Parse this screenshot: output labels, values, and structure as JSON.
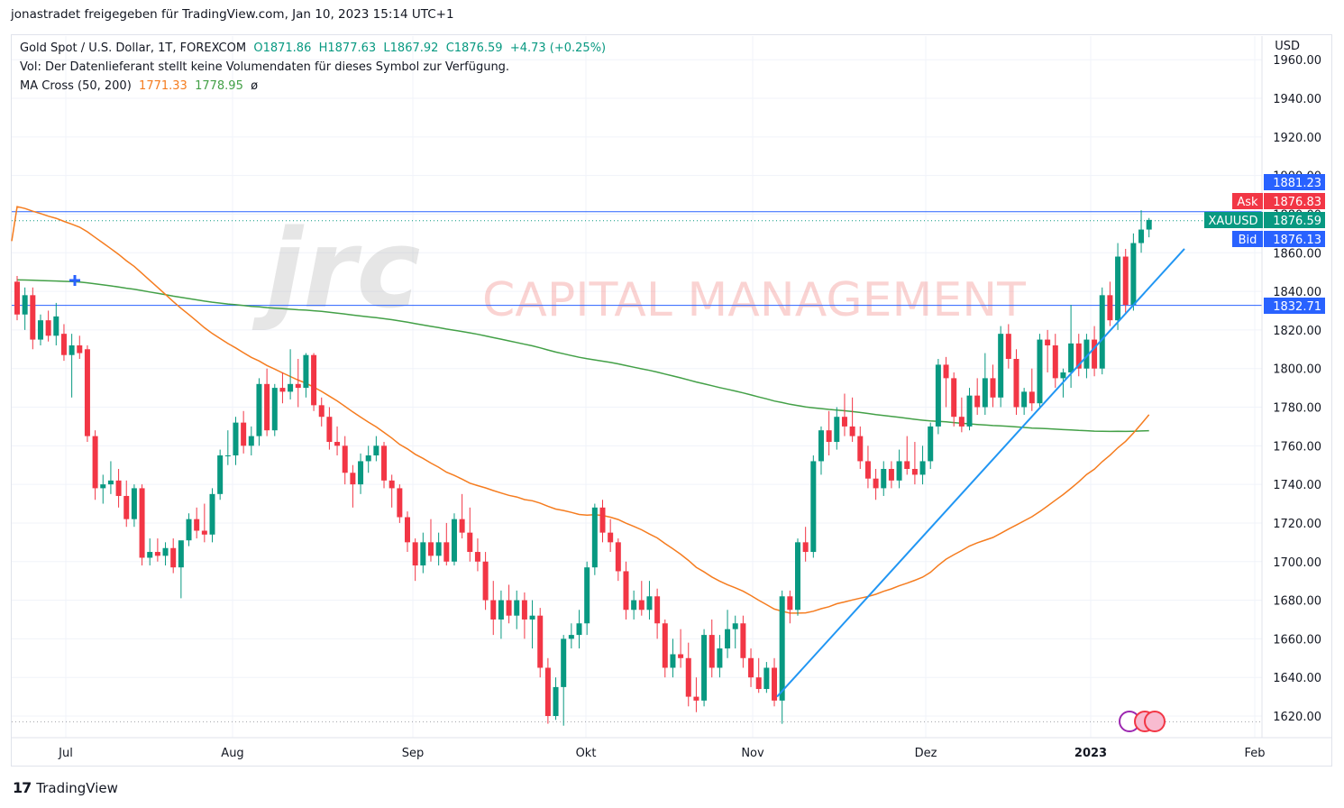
{
  "header": {
    "published_by": "jonastradet freigegeben für TradingView.com, Jan 10, 2023 15:14 UTC+1"
  },
  "legend": {
    "symbol": "Gold Spot / U.S. Dollar, 1T, FOREXCOM",
    "open": "O1871.86",
    "high": "H1877.63",
    "low": "L1867.92",
    "close": "C1876.59",
    "change": "+4.73 (+0.25%)",
    "volume_note": "Vol: Der Datenlieferant stellt keine Volumendaten für dieses Symbol zur Verfügung.",
    "ma_label": "MA Cross (50, 200)",
    "ma50": "1771.33",
    "ma200": "1778.95",
    "ma_symbol": "ø"
  },
  "watermark": {
    "logo": "jrc",
    "text": "CAPITAL MANAGEMENT"
  },
  "price_scale": {
    "currency": "USD",
    "labels": [
      "1960.00",
      "1940.00",
      "1920.00",
      "1900.00",
      "1880.00",
      "1860.00",
      "1840.00",
      "1820.00",
      "1800.00",
      "1780.00",
      "1760.00",
      "1740.00",
      "1720.00",
      "1700.00",
      "1680.00",
      "1660.00",
      "1640.00",
      "1620.00"
    ],
    "tags": {
      "hline_top": "1881.23",
      "ask_label": "Ask",
      "ask": "1876.83",
      "symbol_label": "XAUUSD",
      "last": "1876.59",
      "bid_label": "Bid",
      "bid": "1876.13",
      "hline_bottom": "1832.71"
    }
  },
  "time_scale": {
    "labels": [
      "Jul",
      "Aug",
      "Sep",
      "Okt",
      "Nov",
      "Dez",
      "2023",
      "Feb"
    ]
  },
  "brand": {
    "name": "TradingView"
  },
  "colors": {
    "up": "#089981",
    "down": "#f23645",
    "ma50": "#f57c1f",
    "ma200": "#43a047",
    "trendline": "#2196f3",
    "hline": "#2962ff",
    "ask": "#f23645",
    "bid": "#2962ff",
    "last": "#089981"
  },
  "chart_data": {
    "type": "candlestick",
    "ylim": [
      1615,
      1965
    ],
    "horizontal_lines": [
      1881.23,
      1832.71
    ],
    "trendline": {
      "from": [
        "Nov 3",
        1630
      ],
      "to": [
        "Jan 23",
        1862
      ]
    },
    "candles": [
      {
        "o": 1845,
        "h": 1848,
        "l": 1825,
        "c": 1828
      },
      {
        "o": 1828,
        "h": 1842,
        "l": 1820,
        "c": 1838
      },
      {
        "o": 1838,
        "h": 1842,
        "l": 1810,
        "c": 1815
      },
      {
        "o": 1815,
        "h": 1828,
        "l": 1812,
        "c": 1825
      },
      {
        "o": 1825,
        "h": 1830,
        "l": 1814,
        "c": 1817
      },
      {
        "o": 1817,
        "h": 1834,
        "l": 1812,
        "c": 1827
      },
      {
        "o": 1818,
        "h": 1823,
        "l": 1804,
        "c": 1807
      },
      {
        "o": 1807,
        "h": 1818,
        "l": 1785,
        "c": 1812
      },
      {
        "o": 1812,
        "h": 1817,
        "l": 1805,
        "c": 1808
      },
      {
        "o": 1810,
        "h": 1812,
        "l": 1762,
        "c": 1765
      },
      {
        "o": 1765,
        "h": 1768,
        "l": 1732,
        "c": 1738
      },
      {
        "o": 1738,
        "h": 1745,
        "l": 1730,
        "c": 1740
      },
      {
        "o": 1740,
        "h": 1752,
        "l": 1735,
        "c": 1742
      },
      {
        "o": 1742,
        "h": 1748,
        "l": 1728,
        "c": 1734
      },
      {
        "o": 1734,
        "h": 1742,
        "l": 1718,
        "c": 1722
      },
      {
        "o": 1722,
        "h": 1740,
        "l": 1718,
        "c": 1738
      },
      {
        "o": 1738,
        "h": 1740,
        "l": 1698,
        "c": 1702
      },
      {
        "o": 1702,
        "h": 1712,
        "l": 1698,
        "c": 1705
      },
      {
        "o": 1705,
        "h": 1712,
        "l": 1700,
        "c": 1703
      },
      {
        "o": 1703,
        "h": 1710,
        "l": 1698,
        "c": 1707
      },
      {
        "o": 1707,
        "h": 1712,
        "l": 1694,
        "c": 1697
      },
      {
        "o": 1697,
        "h": 1708,
        "l": 1681,
        "c": 1711
      },
      {
        "o": 1711,
        "h": 1725,
        "l": 1708,
        "c": 1722
      },
      {
        "o": 1722,
        "h": 1728,
        "l": 1712,
        "c": 1716
      },
      {
        "o": 1716,
        "h": 1730,
        "l": 1710,
        "c": 1714
      },
      {
        "o": 1714,
        "h": 1738,
        "l": 1710,
        "c": 1735
      },
      {
        "o": 1735,
        "h": 1758,
        "l": 1732,
        "c": 1755
      },
      {
        "o": 1755,
        "h": 1768,
        "l": 1750,
        "c": 1755
      },
      {
        "o": 1755,
        "h": 1775,
        "l": 1750,
        "c": 1772
      },
      {
        "o": 1772,
        "h": 1778,
        "l": 1756,
        "c": 1760
      },
      {
        "o": 1760,
        "h": 1770,
        "l": 1755,
        "c": 1765
      },
      {
        "o": 1765,
        "h": 1795,
        "l": 1760,
        "c": 1792
      },
      {
        "o": 1792,
        "h": 1800,
        "l": 1765,
        "c": 1768
      },
      {
        "o": 1768,
        "h": 1792,
        "l": 1765,
        "c": 1790
      },
      {
        "o": 1790,
        "h": 1798,
        "l": 1782,
        "c": 1788
      },
      {
        "o": 1788,
        "h": 1810,
        "l": 1784,
        "c": 1792
      },
      {
        "o": 1792,
        "h": 1805,
        "l": 1780,
        "c": 1790
      },
      {
        "o": 1790,
        "h": 1808,
        "l": 1785,
        "c": 1807
      },
      {
        "o": 1807,
        "h": 1808,
        "l": 1778,
        "c": 1781
      },
      {
        "o": 1781,
        "h": 1785,
        "l": 1770,
        "c": 1775
      },
      {
        "o": 1775,
        "h": 1780,
        "l": 1758,
        "c": 1762
      },
      {
        "o": 1762,
        "h": 1770,
        "l": 1755,
        "c": 1760
      },
      {
        "o": 1760,
        "h": 1765,
        "l": 1740,
        "c": 1746
      },
      {
        "o": 1746,
        "h": 1750,
        "l": 1728,
        "c": 1740
      },
      {
        "o": 1740,
        "h": 1756,
        "l": 1735,
        "c": 1752
      },
      {
        "o": 1752,
        "h": 1760,
        "l": 1746,
        "c": 1755
      },
      {
        "o": 1755,
        "h": 1765,
        "l": 1752,
        "c": 1760
      },
      {
        "o": 1760,
        "h": 1762,
        "l": 1738,
        "c": 1742
      },
      {
        "o": 1742,
        "h": 1745,
        "l": 1728,
        "c": 1738
      },
      {
        "o": 1738,
        "h": 1740,
        "l": 1720,
        "c": 1723
      },
      {
        "o": 1723,
        "h": 1726,
        "l": 1705,
        "c": 1710
      },
      {
        "o": 1710,
        "h": 1712,
        "l": 1690,
        "c": 1698
      },
      {
        "o": 1698,
        "h": 1715,
        "l": 1694,
        "c": 1710
      },
      {
        "o": 1710,
        "h": 1722,
        "l": 1700,
        "c": 1703
      },
      {
        "o": 1703,
        "h": 1715,
        "l": 1698,
        "c": 1710
      },
      {
        "o": 1710,
        "h": 1720,
        "l": 1698,
        "c": 1700
      },
      {
        "o": 1700,
        "h": 1725,
        "l": 1698,
        "c": 1722
      },
      {
        "o": 1722,
        "h": 1735,
        "l": 1712,
        "c": 1715
      },
      {
        "o": 1715,
        "h": 1728,
        "l": 1700,
        "c": 1705
      },
      {
        "o": 1705,
        "h": 1712,
        "l": 1695,
        "c": 1700
      },
      {
        "o": 1700,
        "h": 1705,
        "l": 1675,
        "c": 1680
      },
      {
        "o": 1680,
        "h": 1690,
        "l": 1662,
        "c": 1670
      },
      {
        "o": 1670,
        "h": 1685,
        "l": 1660,
        "c": 1680
      },
      {
        "o": 1680,
        "h": 1688,
        "l": 1668,
        "c": 1672
      },
      {
        "o": 1672,
        "h": 1685,
        "l": 1665,
        "c": 1680
      },
      {
        "o": 1680,
        "h": 1684,
        "l": 1660,
        "c": 1670
      },
      {
        "o": 1670,
        "h": 1680,
        "l": 1655,
        "c": 1672
      },
      {
        "o": 1672,
        "h": 1676,
        "l": 1640,
        "c": 1645
      },
      {
        "o": 1645,
        "h": 1650,
        "l": 1616,
        "c": 1620
      },
      {
        "o": 1620,
        "h": 1640,
        "l": 1618,
        "c": 1635
      },
      {
        "o": 1635,
        "h": 1662,
        "l": 1615,
        "c": 1660
      },
      {
        "o": 1660,
        "h": 1668,
        "l": 1655,
        "c": 1662
      },
      {
        "o": 1662,
        "h": 1675,
        "l": 1655,
        "c": 1668
      },
      {
        "o": 1668,
        "h": 1700,
        "l": 1662,
        "c": 1697
      },
      {
        "o": 1697,
        "h": 1730,
        "l": 1693,
        "c": 1728
      },
      {
        "o": 1728,
        "h": 1732,
        "l": 1710,
        "c": 1715
      },
      {
        "o": 1715,
        "h": 1722,
        "l": 1705,
        "c": 1710
      },
      {
        "o": 1710,
        "h": 1712,
        "l": 1690,
        "c": 1695
      },
      {
        "o": 1695,
        "h": 1700,
        "l": 1670,
        "c": 1675
      },
      {
        "o": 1675,
        "h": 1685,
        "l": 1670,
        "c": 1680
      },
      {
        "o": 1680,
        "h": 1690,
        "l": 1672,
        "c": 1675
      },
      {
        "o": 1675,
        "h": 1690,
        "l": 1670,
        "c": 1682
      },
      {
        "o": 1682,
        "h": 1686,
        "l": 1660,
        "c": 1668
      },
      {
        "o": 1668,
        "h": 1670,
        "l": 1640,
        "c": 1645
      },
      {
        "o": 1645,
        "h": 1660,
        "l": 1640,
        "c": 1652
      },
      {
        "o": 1652,
        "h": 1665,
        "l": 1645,
        "c": 1650
      },
      {
        "o": 1650,
        "h": 1658,
        "l": 1625,
        "c": 1630
      },
      {
        "o": 1630,
        "h": 1640,
        "l": 1622,
        "c": 1628
      },
      {
        "o": 1628,
        "h": 1665,
        "l": 1625,
        "c": 1662
      },
      {
        "o": 1662,
        "h": 1670,
        "l": 1640,
        "c": 1645
      },
      {
        "o": 1645,
        "h": 1662,
        "l": 1640,
        "c": 1655
      },
      {
        "o": 1655,
        "h": 1675,
        "l": 1650,
        "c": 1665
      },
      {
        "o": 1665,
        "h": 1672,
        "l": 1655,
        "c": 1668
      },
      {
        "o": 1668,
        "h": 1672,
        "l": 1645,
        "c": 1650
      },
      {
        "o": 1650,
        "h": 1655,
        "l": 1635,
        "c": 1640
      },
      {
        "o": 1640,
        "h": 1650,
        "l": 1632,
        "c": 1634
      },
      {
        "o": 1634,
        "h": 1648,
        "l": 1632,
        "c": 1645
      },
      {
        "o": 1645,
        "h": 1650,
        "l": 1625,
        "c": 1628
      },
      {
        "o": 1628,
        "h": 1685,
        "l": 1616,
        "c": 1682
      },
      {
        "o": 1682,
        "h": 1685,
        "l": 1668,
        "c": 1675
      },
      {
        "o": 1675,
        "h": 1712,
        "l": 1672,
        "c": 1710
      },
      {
        "o": 1710,
        "h": 1718,
        "l": 1700,
        "c": 1705
      },
      {
        "o": 1705,
        "h": 1755,
        "l": 1702,
        "c": 1752
      },
      {
        "o": 1752,
        "h": 1770,
        "l": 1745,
        "c": 1768
      },
      {
        "o": 1768,
        "h": 1778,
        "l": 1755,
        "c": 1762
      },
      {
        "o": 1762,
        "h": 1780,
        "l": 1758,
        "c": 1775
      },
      {
        "o": 1775,
        "h": 1787,
        "l": 1765,
        "c": 1770
      },
      {
        "o": 1770,
        "h": 1785,
        "l": 1762,
        "c": 1765
      },
      {
        "o": 1765,
        "h": 1770,
        "l": 1748,
        "c": 1752
      },
      {
        "o": 1752,
        "h": 1760,
        "l": 1738,
        "c": 1743
      },
      {
        "o": 1743,
        "h": 1748,
        "l": 1732,
        "c": 1738
      },
      {
        "o": 1738,
        "h": 1752,
        "l": 1734,
        "c": 1748
      },
      {
        "o": 1748,
        "h": 1752,
        "l": 1738,
        "c": 1742
      },
      {
        "o": 1742,
        "h": 1758,
        "l": 1738,
        "c": 1752
      },
      {
        "o": 1752,
        "h": 1765,
        "l": 1745,
        "c": 1748
      },
      {
        "o": 1748,
        "h": 1762,
        "l": 1740,
        "c": 1745
      },
      {
        "o": 1745,
        "h": 1760,
        "l": 1740,
        "c": 1752
      },
      {
        "o": 1752,
        "h": 1772,
        "l": 1748,
        "c": 1770
      },
      {
        "o": 1770,
        "h": 1805,
        "l": 1766,
        "c": 1802
      },
      {
        "o": 1802,
        "h": 1806,
        "l": 1780,
        "c": 1795
      },
      {
        "o": 1795,
        "h": 1798,
        "l": 1770,
        "c": 1775
      },
      {
        "o": 1775,
        "h": 1785,
        "l": 1767,
        "c": 1770
      },
      {
        "o": 1770,
        "h": 1790,
        "l": 1768,
        "c": 1786
      },
      {
        "o": 1786,
        "h": 1795,
        "l": 1776,
        "c": 1780
      },
      {
        "o": 1780,
        "h": 1808,
        "l": 1776,
        "c": 1795
      },
      {
        "o": 1795,
        "h": 1802,
        "l": 1780,
        "c": 1785
      },
      {
        "o": 1785,
        "h": 1822,
        "l": 1780,
        "c": 1818
      },
      {
        "o": 1818,
        "h": 1823,
        "l": 1800,
        "c": 1805
      },
      {
        "o": 1805,
        "h": 1810,
        "l": 1776,
        "c": 1780
      },
      {
        "o": 1780,
        "h": 1790,
        "l": 1776,
        "c": 1788
      },
      {
        "o": 1788,
        "h": 1800,
        "l": 1778,
        "c": 1782
      },
      {
        "o": 1782,
        "h": 1818,
        "l": 1780,
        "c": 1815
      },
      {
        "o": 1815,
        "h": 1820,
        "l": 1798,
        "c": 1812
      },
      {
        "o": 1812,
        "h": 1818,
        "l": 1790,
        "c": 1795
      },
      {
        "o": 1795,
        "h": 1800,
        "l": 1785,
        "c": 1798
      },
      {
        "o": 1798,
        "h": 1833,
        "l": 1790,
        "c": 1813
      },
      {
        "o": 1813,
        "h": 1818,
        "l": 1796,
        "c": 1800
      },
      {
        "o": 1800,
        "h": 1818,
        "l": 1795,
        "c": 1815
      },
      {
        "o": 1815,
        "h": 1822,
        "l": 1796,
        "c": 1800
      },
      {
        "o": 1800,
        "h": 1842,
        "l": 1797,
        "c": 1838
      },
      {
        "o": 1838,
        "h": 1845,
        "l": 1822,
        "c": 1825
      },
      {
        "o": 1825,
        "h": 1865,
        "l": 1820,
        "c": 1858
      },
      {
        "o": 1858,
        "h": 1862,
        "l": 1828,
        "c": 1833
      },
      {
        "o": 1833,
        "h": 1870,
        "l": 1830,
        "c": 1865
      },
      {
        "o": 1865,
        "h": 1882,
        "l": 1860,
        "c": 1872
      },
      {
        "o": 1872,
        "h": 1878,
        "l": 1868,
        "c": 1877
      }
    ]
  }
}
